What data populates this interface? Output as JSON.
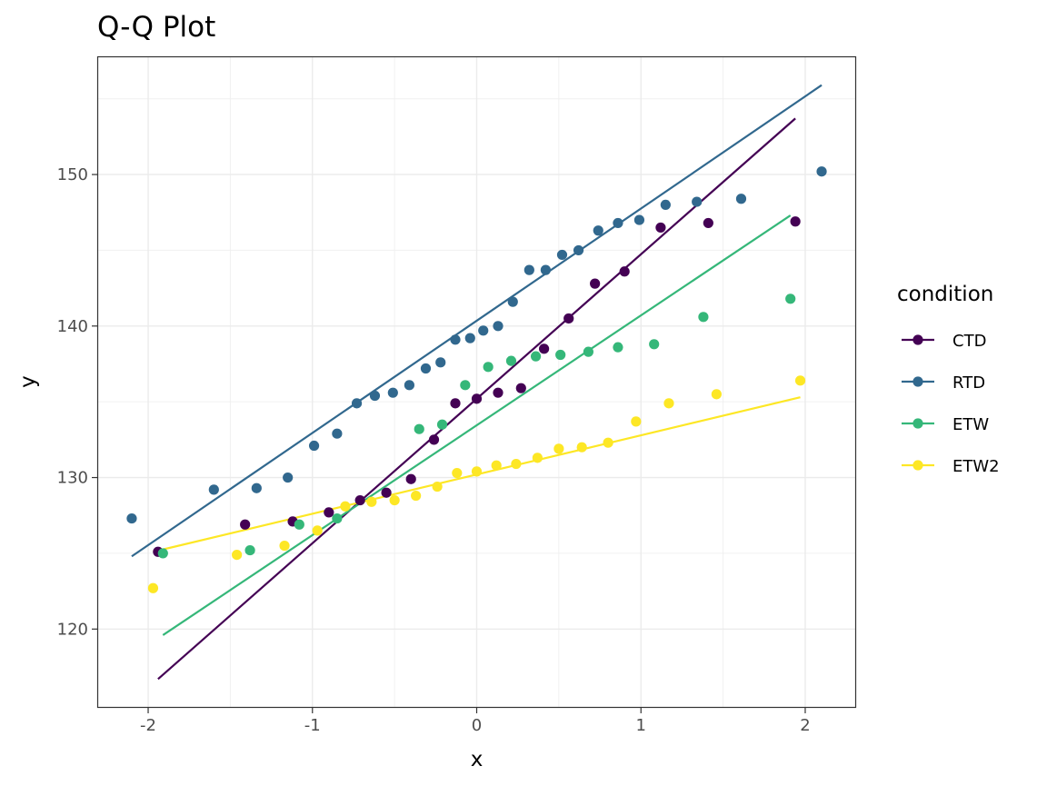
{
  "chart_data": {
    "type": "scatter",
    "title": "Q-Q Plot",
    "xlabel": "x",
    "ylabel": "y",
    "xlim": [
      -2.31,
      2.31
    ],
    "ylim": [
      114.8,
      157.8
    ],
    "x_ticks": [
      -2,
      -1,
      0,
      1,
      2
    ],
    "x_tick_labels": [
      "-2",
      "-1",
      "0",
      "1",
      "2"
    ],
    "y_ticks": [
      120,
      130,
      140,
      150
    ],
    "y_tick_labels": [
      "120",
      "130",
      "140",
      "150"
    ],
    "grid": true,
    "legend_title": "condition",
    "legend_position": "right",
    "series": [
      {
        "name": "CTD",
        "color": "#440154",
        "points": [
          [
            -1.94,
            125.1
          ],
          [
            -1.41,
            126.9
          ],
          [
            -1.12,
            127.1
          ],
          [
            -0.9,
            127.7
          ],
          [
            -0.71,
            128.5
          ],
          [
            -0.55,
            129.0
          ],
          [
            -0.4,
            129.9
          ],
          [
            -0.26,
            132.5
          ],
          [
            -0.13,
            134.9
          ],
          [
            0.0,
            135.2
          ],
          [
            0.13,
            135.6
          ],
          [
            0.27,
            135.9
          ],
          [
            0.41,
            138.5
          ],
          [
            0.56,
            140.5
          ],
          [
            0.72,
            142.8
          ],
          [
            0.9,
            143.6
          ],
          [
            1.12,
            146.5
          ],
          [
            1.41,
            146.8
          ],
          [
            1.94,
            146.9
          ]
        ],
        "qq_line": [
          [
            -1.94,
            116.7
          ],
          [
            1.94,
            153.7
          ]
        ]
      },
      {
        "name": "RTD",
        "color": "#31688e",
        "points": [
          [
            -2.1,
            127.3
          ],
          [
            -1.6,
            129.2
          ],
          [
            -1.34,
            129.3
          ],
          [
            -1.15,
            130.0
          ],
          [
            -0.99,
            132.1
          ],
          [
            -0.85,
            132.9
          ],
          [
            -0.73,
            134.9
          ],
          [
            -0.62,
            135.4
          ],
          [
            -0.51,
            135.6
          ],
          [
            -0.41,
            136.1
          ],
          [
            -0.31,
            137.2
          ],
          [
            -0.22,
            137.6
          ],
          [
            -0.13,
            139.1
          ],
          [
            -0.04,
            139.2
          ],
          [
            0.04,
            139.7
          ],
          [
            0.13,
            140.0
          ],
          [
            0.22,
            141.6
          ],
          [
            0.32,
            143.7
          ],
          [
            0.42,
            143.7
          ],
          [
            0.52,
            144.7
          ],
          [
            0.62,
            145.0
          ],
          [
            0.74,
            146.3
          ],
          [
            0.86,
            146.8
          ],
          [
            0.99,
            147.0
          ],
          [
            1.15,
            148.0
          ],
          [
            1.34,
            148.2
          ],
          [
            1.61,
            148.4
          ],
          [
            2.1,
            150.2
          ]
        ],
        "qq_line": [
          [
            -2.1,
            124.8
          ],
          [
            2.1,
            155.9
          ]
        ]
      },
      {
        "name": "ETW",
        "color": "#35b779",
        "points": [
          [
            -1.91,
            125.0
          ],
          [
            -1.38,
            125.2
          ],
          [
            -1.08,
            126.9
          ],
          [
            -0.85,
            127.3
          ],
          [
            -0.35,
            133.2
          ],
          [
            -0.21,
            133.5
          ],
          [
            -0.07,
            136.1
          ],
          [
            0.07,
            137.3
          ],
          [
            0.21,
            137.7
          ],
          [
            0.36,
            138.0
          ],
          [
            0.51,
            138.1
          ],
          [
            0.68,
            138.3
          ],
          [
            0.86,
            138.6
          ],
          [
            1.08,
            138.8
          ],
          [
            1.38,
            140.6
          ],
          [
            1.91,
            141.8
          ]
        ],
        "qq_line": [
          [
            -1.91,
            119.6
          ],
          [
            1.91,
            147.3
          ]
        ]
      },
      {
        "name": "ETW2",
        "color": "#fde725",
        "points": [
          [
            -1.97,
            122.7
          ],
          [
            -1.46,
            124.9
          ],
          [
            -1.17,
            125.5
          ],
          [
            -0.97,
            126.5
          ],
          [
            -0.8,
            128.1
          ],
          [
            -0.64,
            128.4
          ],
          [
            -0.5,
            128.5
          ],
          [
            -0.37,
            128.8
          ],
          [
            -0.24,
            129.4
          ],
          [
            -0.12,
            130.3
          ],
          [
            0.0,
            130.4
          ],
          [
            0.12,
            130.8
          ],
          [
            0.24,
            130.9
          ],
          [
            0.37,
            131.3
          ],
          [
            0.5,
            131.9
          ],
          [
            0.64,
            132.0
          ],
          [
            0.8,
            132.3
          ],
          [
            0.97,
            133.7
          ],
          [
            1.17,
            134.9
          ],
          [
            1.46,
            135.5
          ],
          [
            1.97,
            136.4
          ]
        ],
        "qq_line": [
          [
            -1.97,
            125.1
          ],
          [
            1.97,
            135.3
          ]
        ]
      }
    ]
  }
}
